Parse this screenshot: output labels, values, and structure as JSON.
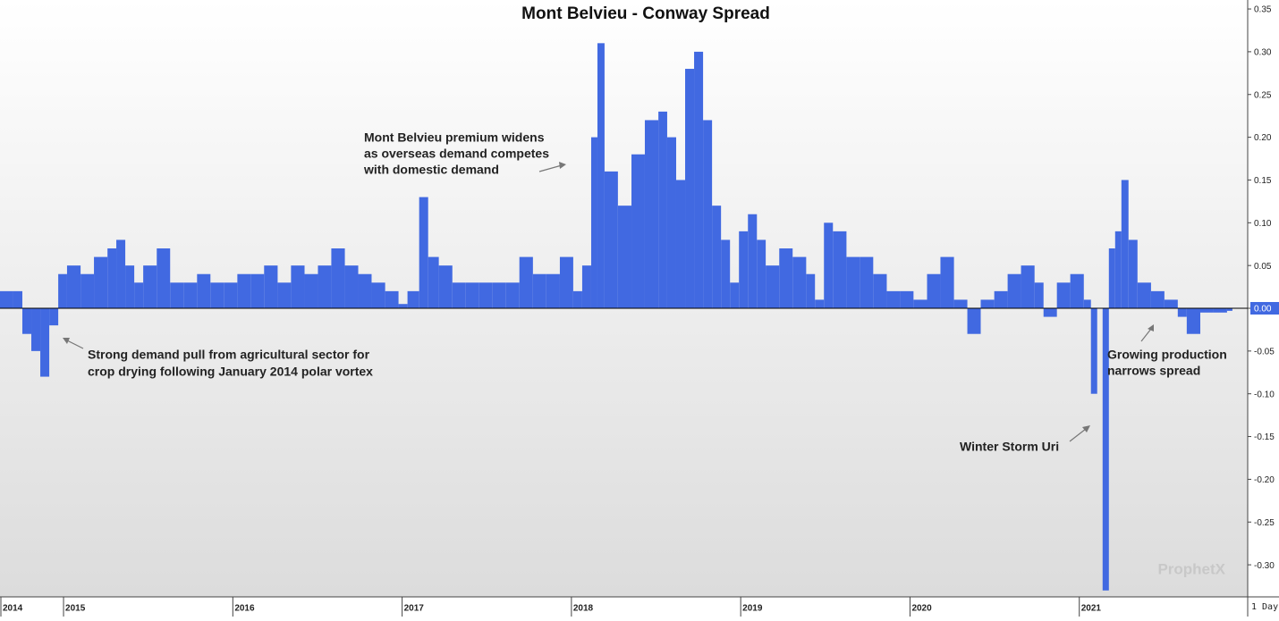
{
  "chart_data": {
    "type": "area",
    "title": "Mont Belvieu - Conway Spread",
    "color": "#4169e1",
    "x": [
      2014.63,
      2014.709,
      2014.762,
      2014.815,
      2014.868,
      2014.921,
      2014.974,
      2015.026,
      2015.106,
      2015.185,
      2015.265,
      2015.317,
      2015.37,
      2015.423,
      2015.476,
      2015.556,
      2015.635,
      2015.714,
      2015.794,
      2015.873,
      2015.952,
      2016.032,
      2016.111,
      2016.19,
      2016.27,
      2016.349,
      2016.429,
      2016.508,
      2016.587,
      2016.667,
      2016.746,
      2016.825,
      2016.905,
      2016.984,
      2017.037,
      2017.106,
      2017.159,
      2017.222,
      2017.302,
      2017.381,
      2017.46,
      2017.54,
      2017.619,
      2017.698,
      2017.778,
      2017.857,
      2017.937,
      2018.016,
      2018.069,
      2018.122,
      2018.159,
      2018.201,
      2018.28,
      2018.36,
      2018.439,
      2018.519,
      2018.571,
      2018.624,
      2018.677,
      2018.73,
      2018.783,
      2018.836,
      2018.889,
      2018.942,
      2018.995,
      2019.048,
      2019.101,
      2019.153,
      2019.233,
      2019.312,
      2019.392,
      2019.444,
      2019.497,
      2019.55,
      2019.63,
      2019.709,
      2019.788,
      2019.868,
      2019.947,
      2020.026,
      2020.106,
      2020.185,
      2020.265,
      2020.344,
      2020.423,
      2020.503,
      2020.582,
      2020.661,
      2020.741,
      2020.794,
      2020.873,
      2020.952,
      2021.032,
      2021.074,
      2021.111,
      2021.143,
      2021.18,
      2021.217,
      2021.254,
      2021.296,
      2021.349,
      2021.429,
      2021.508,
      2021.587,
      2021.64,
      2021.72,
      2021.799,
      2021.878
    ],
    "values": [
      0.02,
      0.02,
      -0.03,
      -0.05,
      -0.08,
      -0.02,
      0.04,
      0.05,
      0.04,
      0.06,
      0.07,
      0.08,
      0.05,
      0.03,
      0.05,
      0.07,
      0.03,
      0.03,
      0.04,
      0.03,
      0.03,
      0.04,
      0.04,
      0.05,
      0.03,
      0.05,
      0.04,
      0.05,
      0.07,
      0.05,
      0.04,
      0.03,
      0.02,
      0.005,
      0.02,
      0.13,
      0.06,
      0.05,
      0.03,
      0.03,
      0.03,
      0.03,
      0.03,
      0.06,
      0.04,
      0.04,
      0.06,
      0.02,
      0.05,
      0.2,
      0.31,
      0.16,
      0.12,
      0.18,
      0.22,
      0.23,
      0.2,
      0.15,
      0.28,
      0.3,
      0.22,
      0.12,
      0.08,
      0.03,
      0.09,
      0.11,
      0.08,
      0.05,
      0.07,
      0.06,
      0.04,
      0.01,
      0.1,
      0.09,
      0.06,
      0.06,
      0.04,
      0.02,
      0.02,
      0.01,
      0.04,
      0.06,
      0.01,
      -0.03,
      0.01,
      0.02,
      0.04,
      0.05,
      0.03,
      -0.01,
      0.03,
      0.04,
      0.01,
      -0.1,
      0.0,
      -0.33,
      0.07,
      0.09,
      0.15,
      0.08,
      0.03,
      0.02,
      0.01,
      -0.01,
      -0.03,
      -0.005,
      -0.005,
      -0.003
    ],
    "xlim": [
      2014.63,
      2022.0
    ],
    "xticks": [
      {
        "value": 2014.63,
        "label": "2014"
      },
      2015,
      2016,
      2017,
      2018,
      2019,
      2020,
      2021
    ],
    "ylim": [
      -0.3375,
      0.3605
    ],
    "yticks": [
      0.35,
      {
        "value": 0.3,
        "label": "0.30"
      },
      0.25,
      {
        "value": 0.2,
        "label": "0.20"
      },
      0.15,
      {
        "value": 0.1,
        "label": "0.10"
      },
      0.05,
      {
        "value": 0,
        "label": "0.00"
      },
      -0.05,
      {
        "value": -0.1,
        "label": "-0.10"
      },
      -0.15,
      {
        "value": -0.2,
        "label": "-0.20"
      },
      -0.25,
      {
        "value": -0.3,
        "label": "-0.30"
      }
    ],
    "annotations": [
      [
        "Mont Belvieu premium widens",
        "as overseas demand competes",
        "with domestic demand"
      ],
      [
        "Strong demand pull from agricultural sector for",
        "crop drying following January 2014 polar vortex"
      ],
      [
        "Winter Storm Uri"
      ],
      [
        "Growing production",
        "narrows spread"
      ]
    ],
    "watermark": "ProphetX",
    "interval_label": "1 Day"
  }
}
